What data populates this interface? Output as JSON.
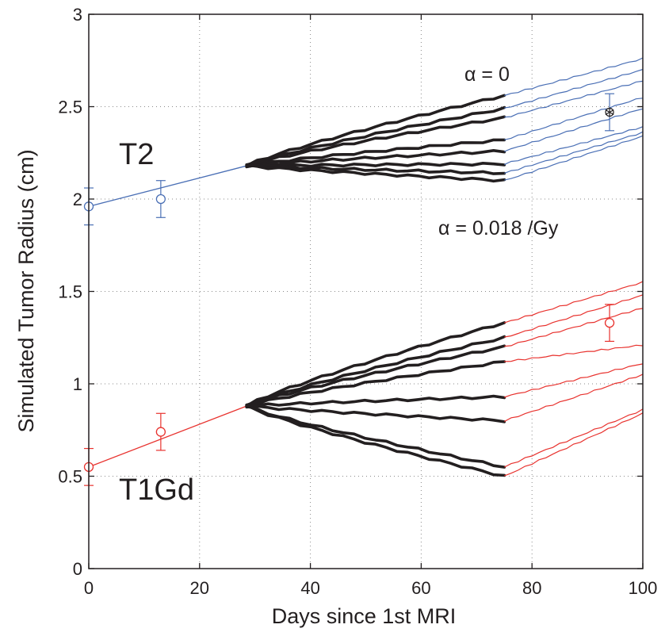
{
  "chart_data": {
    "type": "line",
    "xlabel": "Days since 1st MRI",
    "ylabel": "Simulated Tumor Radius (cm)",
    "xlim": [
      0,
      100
    ],
    "ylim": [
      0,
      3
    ],
    "xticks": [
      "0",
      "20",
      "40",
      "60",
      "80",
      "100"
    ],
    "yticks": [
      "0",
      "0.5",
      "1",
      "1.5",
      "2",
      "2.5",
      "3"
    ],
    "grid": true,
    "annotations": [
      "α = 0",
      "α = 0.018 /Gy"
    ],
    "series_labels": {
      "t2": "T2",
      "t1gd": "T1Gd"
    },
    "colors": {
      "t2": "#4a6fb5",
      "t1gd": "#e8322e",
      "therapy": "#231f20",
      "axis": "#231f20"
    },
    "groups": [
      {
        "name": "T2",
        "pre_therapy": {
          "x": [
            0,
            28.5
          ],
          "y": [
            1.96,
            2.18
          ]
        },
        "therapy_end_values": [
          2.56,
          2.49,
          2.44,
          2.32,
          2.26,
          2.19,
          2.14,
          2.1
        ],
        "post_therapy_end_values": [
          2.76,
          2.7,
          2.64,
          2.55,
          2.49,
          2.39,
          2.36,
          2.34
        ],
        "observations": [
          {
            "x": 0,
            "y": 1.96,
            "err": 0.1,
            "marker": "circle"
          },
          {
            "x": 13,
            "y": 2.0,
            "err": 0.1,
            "marker": "circle"
          },
          {
            "x": 94,
            "y": 2.47,
            "err": 0.1,
            "marker": "asterisk"
          }
        ]
      },
      {
        "name": "T1Gd",
        "pre_therapy": {
          "x": [
            0,
            28.5
          ],
          "y": [
            0.55,
            0.88
          ]
        },
        "therapy_end_values": [
          1.33,
          1.25,
          1.2,
          1.12,
          0.93,
          0.8,
          0.55,
          0.5
        ],
        "post_therapy_end_values": [
          1.55,
          1.48,
          1.41,
          1.21,
          1.11,
          1.05,
          0.86,
          0.84
        ],
        "observations": [
          {
            "x": 0,
            "y": 0.55,
            "err": 0.1,
            "marker": "circle"
          },
          {
            "x": 13,
            "y": 0.74,
            "err": 0.1,
            "marker": "circle"
          },
          {
            "x": 94,
            "y": 1.33,
            "err": 0.1,
            "marker": "circle"
          }
        ]
      }
    ],
    "therapy_window": [
      28.5,
      75
    ]
  }
}
